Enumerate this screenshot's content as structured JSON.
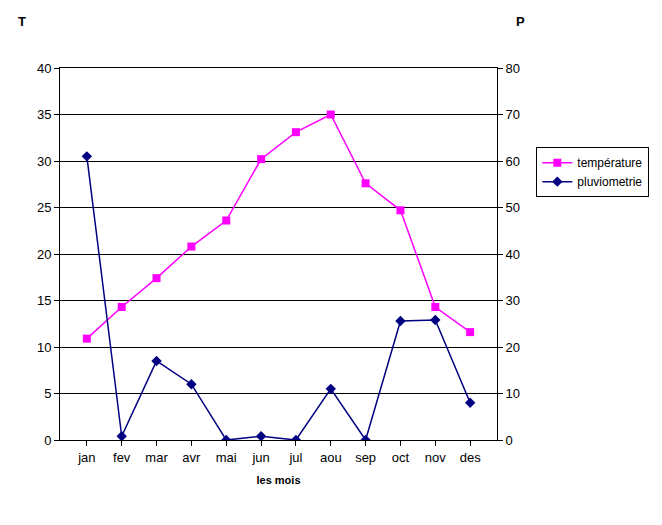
{
  "chart_data": {
    "type": "line",
    "xlabel": "les mois",
    "ylabel": "T",
    "y2label": "P",
    "categories": [
      "jan",
      "fev",
      "mar",
      "avr",
      "mai",
      "jun",
      "jul",
      "aou",
      "sep",
      "oct",
      "nov",
      "des"
    ],
    "series": [
      {
        "name": "température",
        "color": "#ff00ff",
        "marker": "square",
        "axis": "y",
        "values": [
          10.9,
          14.3,
          17.4,
          20.8,
          23.6,
          30.2,
          33.1,
          35.0,
          27.6,
          24.7,
          14.3,
          11.6
        ]
      },
      {
        "name": "pluviometrie",
        "color": "#000080",
        "marker": "diamond",
        "axis": "y2",
        "values": [
          61,
          0.8,
          17,
          12,
          0,
          0.8,
          0,
          11,
          0,
          25.6,
          25.8,
          8
        ]
      }
    ],
    "ylim": [
      0,
      40
    ],
    "yticks": [
      0,
      5,
      10,
      15,
      20,
      25,
      30,
      35,
      40
    ],
    "y2lim": [
      0,
      80
    ],
    "y2ticks": [
      0,
      10,
      20,
      30,
      40,
      50,
      60,
      70,
      80
    ],
    "grid": true,
    "legend": "right"
  }
}
